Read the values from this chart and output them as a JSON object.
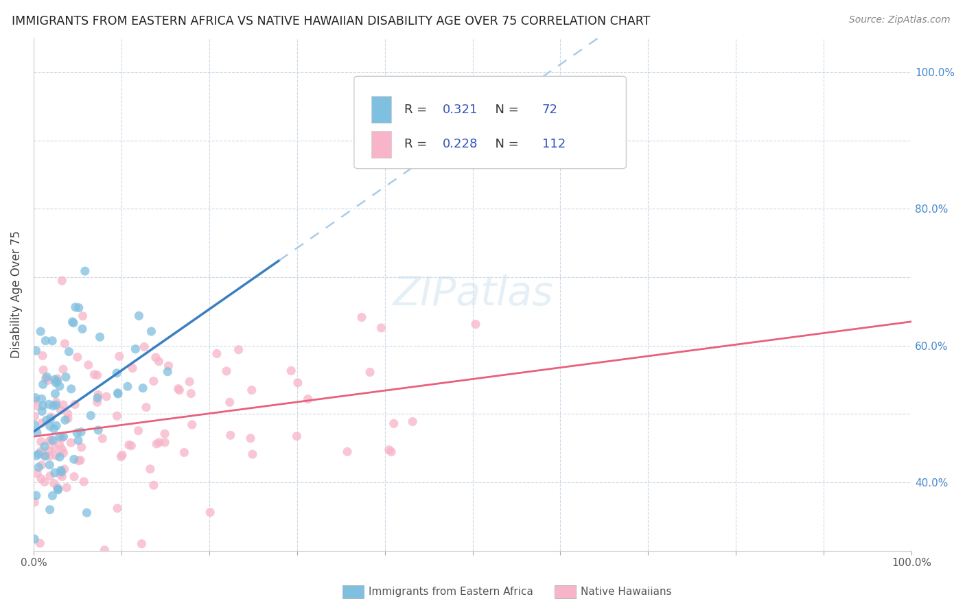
{
  "title": "IMMIGRANTS FROM EASTERN AFRICA VS NATIVE HAWAIIAN DISABILITY AGE OVER 75 CORRELATION CHART",
  "source_text": "Source: ZipAtlas.com",
  "ylabel": "Disability Age Over 75",
  "legend_blue_label": "Immigrants from Eastern Africa",
  "legend_pink_label": "Native Hawaiians",
  "legend_blue_R": "0.321",
  "legend_blue_N": "72",
  "legend_pink_R": "0.228",
  "legend_pink_N": "112",
  "blue_scatter_color": "#7fbfdf",
  "pink_scatter_color": "#f8b4c8",
  "blue_line_color": "#3a7fc1",
  "pink_line_color": "#e8607a",
  "blue_dashed_color": "#aacce8",
  "background_color": "#ffffff",
  "grid_color": "#ccd8e8",
  "title_color": "#222222",
  "stats_color": "#3355bb",
  "right_axis_color": "#4488cc",
  "xmin": 0.0,
  "xmax": 1.0,
  "ymin": 0.3,
  "ymax": 1.05,
  "right_yticks": [
    0.4,
    0.6,
    0.8,
    1.0
  ],
  "right_yticklabels": [
    "40.0%",
    "60.0%",
    "80.0%",
    "100.0%"
  ]
}
